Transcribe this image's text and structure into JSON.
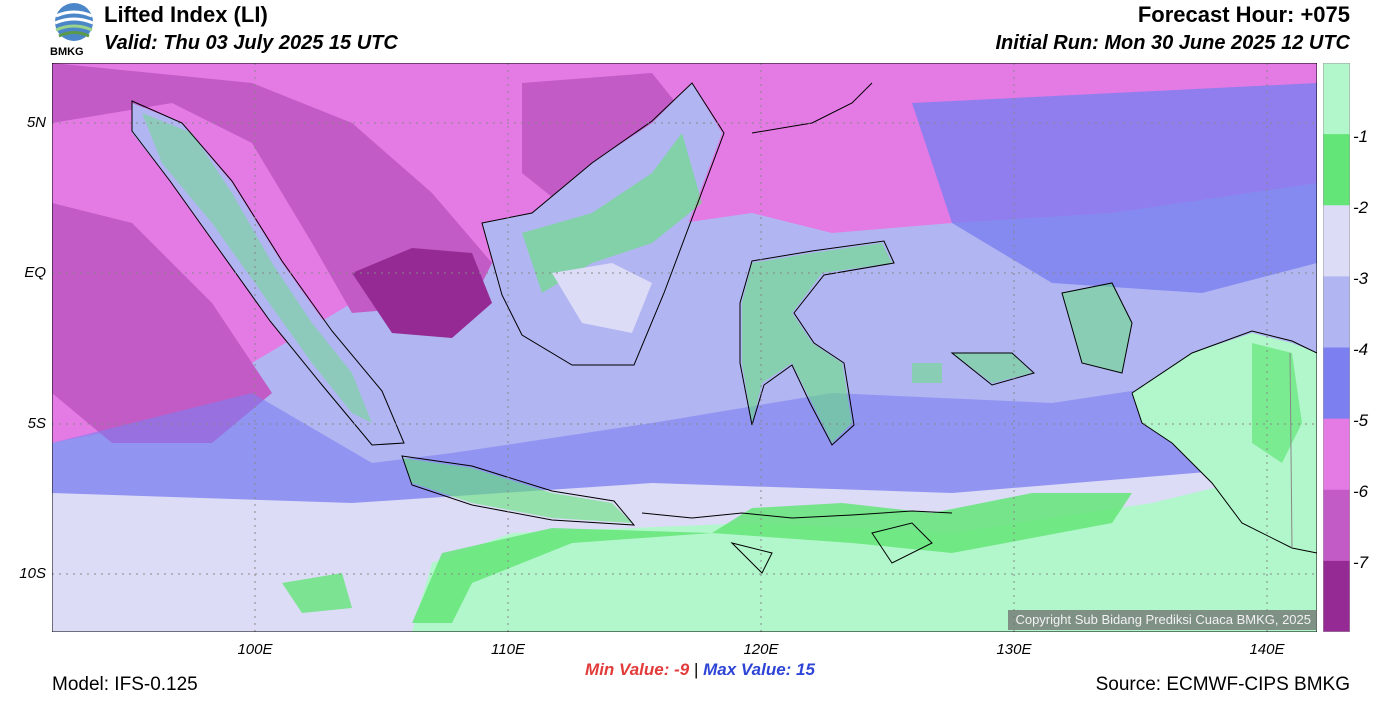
{
  "header": {
    "title": "Lifted Index (LI)",
    "valid": "Valid: Thu 03 July 2025 15 UTC",
    "forecast_hour": "Forecast Hour: +075",
    "initial_run": "Initial Run: Mon 30 June 2025 12 UTC",
    "logo_text": "BMKG"
  },
  "map": {
    "lat_labels": [
      "5N",
      "EQ",
      "5S",
      "10S"
    ],
    "lon_labels": [
      "100E",
      "110E",
      "120E",
      "130E",
      "140E"
    ],
    "copyright": "Copyright Sub Bidang Prediksi Cuaca BMKG, 2025"
  },
  "colorbar": {
    "labels": [
      "-1",
      "-2",
      "-3",
      "-4",
      "-5",
      "-6",
      "-7"
    ],
    "colors": [
      "#b2f7cb",
      "#64e578",
      "#dcdcf7",
      "#b1b5f2",
      "#7b7ff0",
      "#e47ae4",
      "#c25bc5",
      "#952a94"
    ]
  },
  "footer": {
    "min_label": "Min Value:  -9",
    "separator": "|",
    "max_label": "Max Value:  15",
    "model": "Model: IFS-0.125",
    "source": "Source: ECMWF-CIPS BMKG"
  }
}
